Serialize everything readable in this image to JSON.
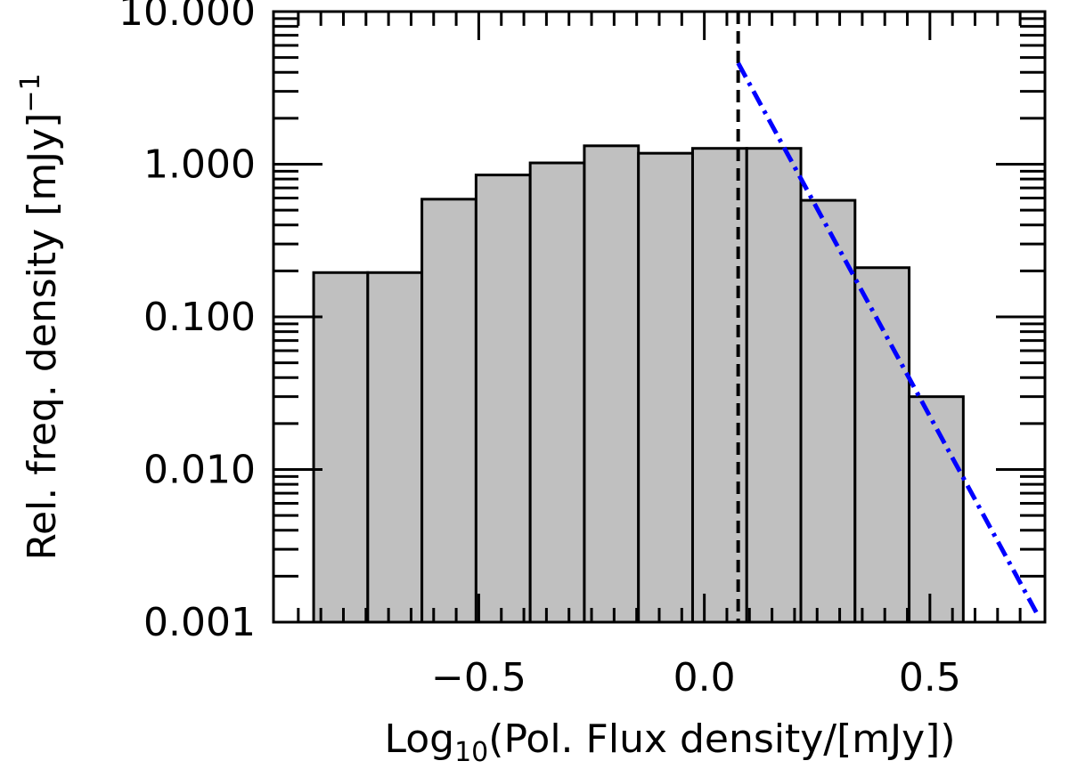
{
  "chart_data": {
    "type": "bar",
    "xlabel": "Log",
    "xlabel_sub": "10",
    "xlabel_rest": "(Pol. Flux density/[mJy])",
    "ylabel": "Rel. freq. density [mJy]",
    "ylabel_sup": "−1",
    "xlim": [
      -0.955,
      0.755
    ],
    "ylim": [
      0.001,
      10
    ],
    "y_scale": "log",
    "x_ticks": [
      -0.5,
      0.0,
      0.5
    ],
    "x_tick_labels": [
      "−0.5",
      "0.0",
      "0.5"
    ],
    "y_ticks": [
      0.001,
      0.01,
      0.1,
      1,
      10
    ],
    "y_tick_labels": [
      "0.001",
      "0.010",
      "0.100",
      "1.000",
      "10.000"
    ],
    "bin_edges": [
      -0.866,
      -0.746,
      -0.626,
      -0.506,
      -0.386,
      -0.266,
      -0.146,
      -0.026,
      0.094,
      0.214,
      0.334,
      0.454,
      0.574
    ],
    "values": [
      0.195,
      0.195,
      0.59,
      0.85,
      1.02,
      1.32,
      1.18,
      1.27,
      1.27,
      0.58,
      0.21,
      0.03
    ],
    "fill_color": "#c0c0c0",
    "edge_color": "#000000",
    "threshold_line": {
      "x": 0.075,
      "style": "dashed",
      "color": "#000000"
    },
    "fit_line": {
      "x": [
        0.075,
        0.74
      ],
      "y": [
        4.6,
        0.0011
      ],
      "style": "dash-dot",
      "color": "#0000ff"
    },
    "grid": false,
    "legend": "none"
  }
}
